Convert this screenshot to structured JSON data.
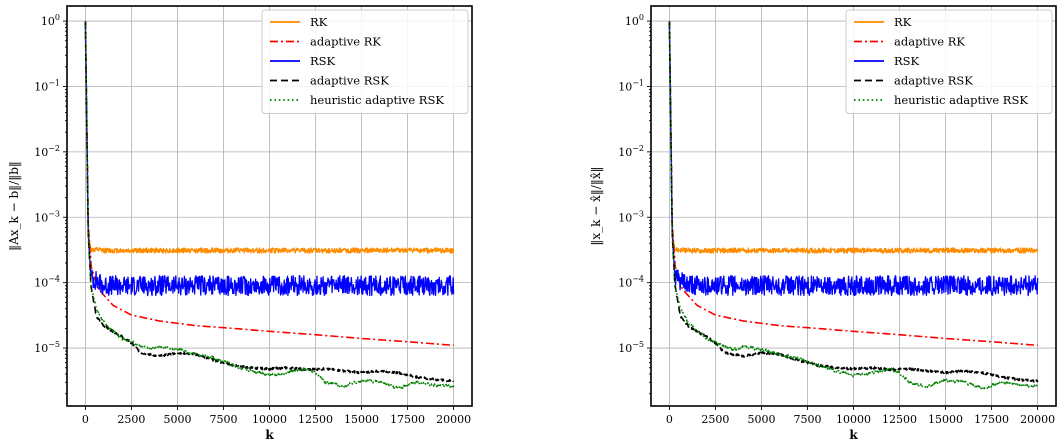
{
  "chart_data": [
    {
      "type": "line",
      "xlabel": "k",
      "ylabel": "‖Ax_k − b‖/‖b‖",
      "yscale": "log",
      "xlim": [
        -1000,
        21000
      ],
      "ylim": [
        1.3e-06,
        1.7
      ],
      "x_ticks": [
        0,
        2500,
        5000,
        7500,
        10000,
        12500,
        15000,
        17500,
        20000
      ],
      "y_ticks": [
        {
          "value": 1,
          "exponent": "0"
        },
        {
          "value": 0.1,
          "exponent": "−1"
        },
        {
          "value": 0.01,
          "exponent": "−2"
        },
        {
          "value": 0.001,
          "exponent": "−3"
        },
        {
          "value": 0.0001,
          "exponent": "−4"
        },
        {
          "value": 1e-05,
          "exponent": "−5"
        }
      ],
      "y_tick_base": "10",
      "grid": true,
      "legend": "top-right",
      "series": [
        {
          "name": "RK",
          "color": "#ff8c00",
          "dash": "solid",
          "noise": 0.09,
          "seed": 11,
          "x": [
            0,
            150,
            300,
            1000,
            5000,
            10000,
            15000,
            20000
          ],
          "y": [
            1,
            0.0006,
            0.00032,
            0.00031,
            0.00031,
            0.00031,
            0.00031,
            0.00031
          ]
        },
        {
          "name": "adaptive RK",
          "color": "#ff0000",
          "dash": "dashdot",
          "noise": 0,
          "seed": 0,
          "x": [
            0,
            150,
            300,
            700,
            1500,
            2500,
            4000,
            6000,
            8000,
            10000,
            12500,
            15000,
            17500,
            20000
          ],
          "y": [
            1,
            0.0008,
            0.00018,
            8e-05,
            4.5e-05,
            3.2e-05,
            2.6e-05,
            2.2e-05,
            2e-05,
            1.8e-05,
            1.6e-05,
            1.4e-05,
            1.25e-05,
            1.1e-05
          ]
        },
        {
          "name": "RSK",
          "color": "#0000ff",
          "dash": "solid",
          "noise": 0.35,
          "seed": 23,
          "x": [
            0,
            150,
            300,
            1000,
            5000,
            10000,
            15000,
            20000
          ],
          "y": [
            1,
            0.0006,
            0.00012,
            9e-05,
            9e-05,
            9e-05,
            9e-05,
            9e-05
          ]
        },
        {
          "name": "adaptive RSK",
          "color": "#000000",
          "dash": "dashed",
          "noise": 0.04,
          "seed": 5,
          "x": [
            0,
            150,
            300,
            600,
            1000,
            1500,
            2000,
            2500,
            3000,
            4000,
            5000,
            6000,
            7000,
            8000,
            9000,
            10000,
            11000,
            12000,
            13000,
            14000,
            15000,
            16000,
            17000,
            18000,
            19000,
            20000
          ],
          "y": [
            1,
            0.0006,
            9e-05,
            3e-05,
            2.2e-05,
            1.8e-05,
            1.5e-05,
            1.2e-05,
            8.5e-06,
            7.5e-06,
            8.5e-06,
            8e-06,
            6.5e-06,
            5.5e-06,
            5e-06,
            4.8e-06,
            5e-06,
            4.7e-06,
            4.8e-06,
            4.5e-06,
            4.2e-06,
            4.5e-06,
            4.2e-06,
            3.6e-06,
            3.3e-06,
            3.1e-06
          ]
        },
        {
          "name": "heuristic adaptive RSK",
          "color": "#008000",
          "dash": "dotted",
          "noise": 0.05,
          "seed": 7,
          "x": [
            0,
            150,
            300,
            600,
            1000,
            1500,
            2000,
            3000,
            3500,
            4000,
            5000,
            6000,
            7000,
            8000,
            9000,
            10000,
            11000,
            12000,
            12500,
            13000,
            14000,
            15000,
            16000,
            17000,
            18000,
            19000,
            20000
          ],
          "y": [
            1,
            0.0006,
            9e-05,
            4e-05,
            2.5e-05,
            1.8e-05,
            1.4e-05,
            1.1e-05,
            9.5e-06,
            1.05e-05,
            9.5e-06,
            8e-06,
            7e-06,
            5.5e-06,
            4.5e-06,
            3.8e-06,
            4.2e-06,
            4.8e-06,
            4.2e-06,
            3e-06,
            2.6e-06,
            3.2e-06,
            3e-06,
            2.4e-06,
            3e-06,
            2.7e-06,
            2.6e-06
          ]
        }
      ]
    },
    {
      "type": "line",
      "xlabel": "k",
      "ylabel": "‖x_k − x̂‖/‖x̂‖",
      "yscale": "log",
      "xlim": [
        -1000,
        21000
      ],
      "ylim": [
        1.3e-06,
        1.7
      ],
      "x_ticks": [
        0,
        2500,
        5000,
        7500,
        10000,
        12500,
        15000,
        17500,
        20000
      ],
      "y_ticks": [
        {
          "value": 1,
          "exponent": "0"
        },
        {
          "value": 0.1,
          "exponent": "−1"
        },
        {
          "value": 0.01,
          "exponent": "−2"
        },
        {
          "value": 0.001,
          "exponent": "−3"
        },
        {
          "value": 0.0001,
          "exponent": "−4"
        },
        {
          "value": 1e-05,
          "exponent": "−5"
        }
      ],
      "y_tick_base": "10",
      "grid": true,
      "legend": "top-right",
      "series": [
        {
          "name": "RK",
          "color": "#ff8c00",
          "dash": "solid",
          "noise": 0.09,
          "seed": 13,
          "x": [
            0,
            150,
            300,
            1000,
            5000,
            10000,
            15000,
            20000
          ],
          "y": [
            1,
            0.0006,
            0.00032,
            0.00031,
            0.00031,
            0.00031,
            0.00031,
            0.00031
          ]
        },
        {
          "name": "adaptive RK",
          "color": "#ff0000",
          "dash": "dashdot",
          "noise": 0,
          "seed": 0,
          "x": [
            0,
            150,
            300,
            700,
            1500,
            2500,
            4000,
            6000,
            8000,
            10000,
            12500,
            15000,
            17500,
            20000
          ],
          "y": [
            1,
            0.0008,
            0.00018,
            8e-05,
            4.5e-05,
            3.2e-05,
            2.6e-05,
            2.2e-05,
            2e-05,
            1.8e-05,
            1.6e-05,
            1.4e-05,
            1.25e-05,
            1.1e-05
          ]
        },
        {
          "name": "RSK",
          "color": "#0000ff",
          "dash": "solid",
          "noise": 0.35,
          "seed": 29,
          "x": [
            0,
            150,
            300,
            1000,
            5000,
            10000,
            15000,
            20000
          ],
          "y": [
            1,
            0.0006,
            0.00012,
            9e-05,
            9e-05,
            9e-05,
            9e-05,
            9e-05
          ]
        },
        {
          "name": "adaptive RSK",
          "color": "#000000",
          "dash": "dashed",
          "noise": 0.04,
          "seed": 5,
          "x": [
            0,
            150,
            300,
            600,
            1000,
            1500,
            2000,
            2500,
            3000,
            4000,
            5000,
            6000,
            7000,
            8000,
            9000,
            10000,
            11000,
            12000,
            13000,
            14000,
            15000,
            16000,
            17000,
            18000,
            19000,
            20000
          ],
          "y": [
            1,
            0.0006,
            9e-05,
            3e-05,
            2.2e-05,
            1.8e-05,
            1.5e-05,
            1.2e-05,
            8.5e-06,
            7.5e-06,
            8.5e-06,
            8e-06,
            6.5e-06,
            5.5e-06,
            5e-06,
            4.8e-06,
            5e-06,
            4.7e-06,
            4.8e-06,
            4.5e-06,
            4.2e-06,
            4.5e-06,
            4.2e-06,
            3.6e-06,
            3.3e-06,
            3.1e-06
          ]
        },
        {
          "name": "heuristic adaptive RSK",
          "color": "#008000",
          "dash": "dotted",
          "noise": 0.05,
          "seed": 7,
          "x": [
            0,
            150,
            300,
            600,
            1000,
            1500,
            2000,
            3000,
            3500,
            4000,
            5000,
            6000,
            7000,
            8000,
            9000,
            10000,
            11000,
            12000,
            12500,
            13000,
            14000,
            15000,
            16000,
            17000,
            18000,
            19000,
            20000
          ],
          "y": [
            1,
            0.0006,
            9e-05,
            4e-05,
            2.5e-05,
            1.8e-05,
            1.4e-05,
            1.1e-05,
            9.5e-06,
            1.05e-05,
            9.5e-06,
            8e-06,
            7e-06,
            5.5e-06,
            4.5e-06,
            3.8e-06,
            4.2e-06,
            4.8e-06,
            4.2e-06,
            3e-06,
            2.6e-06,
            3.2e-06,
            3e-06,
            2.4e-06,
            3e-06,
            2.7e-06,
            2.6e-06
          ]
        }
      ]
    }
  ]
}
